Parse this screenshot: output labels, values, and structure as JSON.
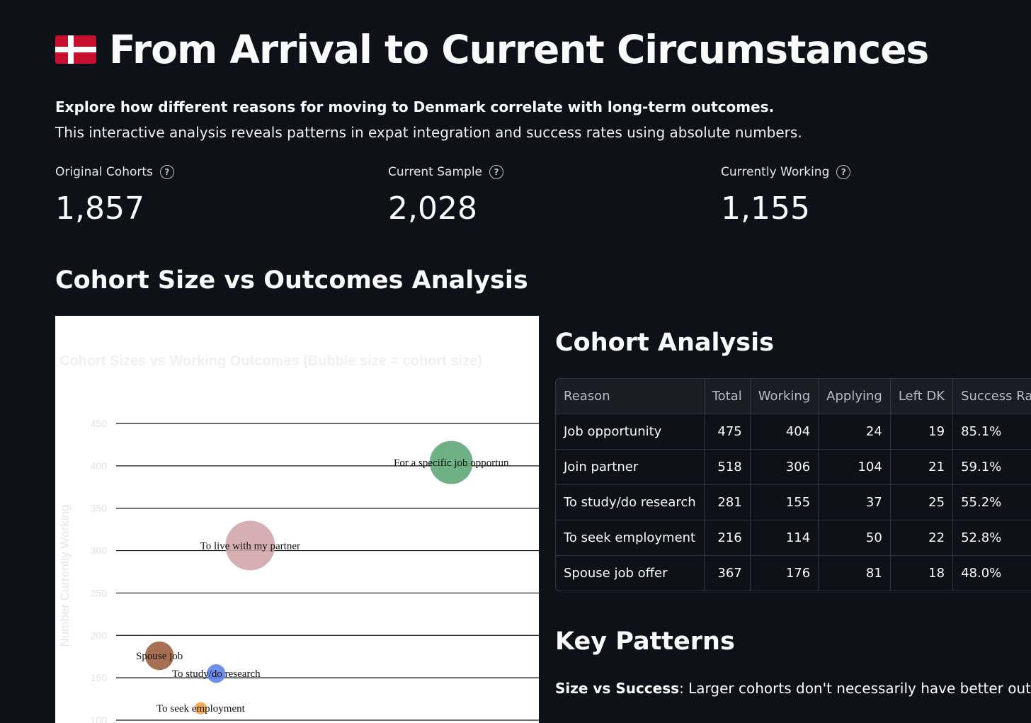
{
  "header": {
    "flag_icon": "danish-flag",
    "title": "From Arrival to Current Circumstances"
  },
  "intro": {
    "bold": "Explore how different reasons for moving to Denmark correlate with long-term outcomes.",
    "text": "This interactive analysis reveals patterns in expat integration and success rates using absolute numbers."
  },
  "metrics": [
    {
      "label": "Original Cohorts",
      "value": "1,857"
    },
    {
      "label": "Current Sample",
      "value": "2,028"
    },
    {
      "label": "Currently Working",
      "value": "1,155"
    }
  ],
  "section_title": "Cohort Size vs Outcomes Analysis",
  "chart_data": {
    "type": "scatter",
    "title": "Cohort Sizes vs Working Outcomes (Bubble size = cohort size)",
    "xlabel": "",
    "ylabel": "Number Currently Working",
    "y_ticks": [
      100,
      150,
      200,
      250,
      300,
      350,
      400,
      450
    ],
    "ylim": [
      100,
      450
    ],
    "xlim": [
      150,
      560
    ],
    "grid": true,
    "points": [
      {
        "label": "For a specific job opportunity",
        "display_label": "For a specific job opportun",
        "x": 475,
        "y": 404,
        "size": 475,
        "color": "#5fa878"
      },
      {
        "label": "To live with my partner",
        "display_label": "To live with my partner",
        "x": 280,
        "y": 306,
        "size": 518,
        "color": "#d2a6aa"
      },
      {
        "label": "Spouse job",
        "display_label": "Spouse job",
        "x": 192,
        "y": 176,
        "size": 367,
        "color": "#9f6140"
      },
      {
        "label": "To study/do research",
        "display_label": "To study/do research",
        "x": 247,
        "y": 155,
        "size": 281,
        "color": "#5f84e8"
      },
      {
        "label": "To seek employment",
        "display_label": "To seek employment",
        "x": 232,
        "y": 114,
        "size": 216,
        "color": "#f5a149"
      }
    ]
  },
  "cohort_table": {
    "title": "Cohort Analysis",
    "columns": [
      "Reason",
      "Total",
      "Working",
      "Applying",
      "Left DK",
      "Success Rate"
    ],
    "rows": [
      [
        "Job opportunity",
        "475",
        "404",
        "24",
        "19",
        "85.1%"
      ],
      [
        "Join partner",
        "518",
        "306",
        "104",
        "21",
        "59.1%"
      ],
      [
        "To study/do research",
        "281",
        "155",
        "37",
        "25",
        "55.2%"
      ],
      [
        "To seek employment",
        "216",
        "114",
        "50",
        "22",
        "52.8%"
      ],
      [
        "Spouse job offer",
        "367",
        "176",
        "81",
        "18",
        "48.0%"
      ]
    ]
  },
  "key_patterns": {
    "title": "Key Patterns",
    "label": "Size vs Success",
    "text": ": Larger cohorts don't necessarily have better outcomes."
  }
}
